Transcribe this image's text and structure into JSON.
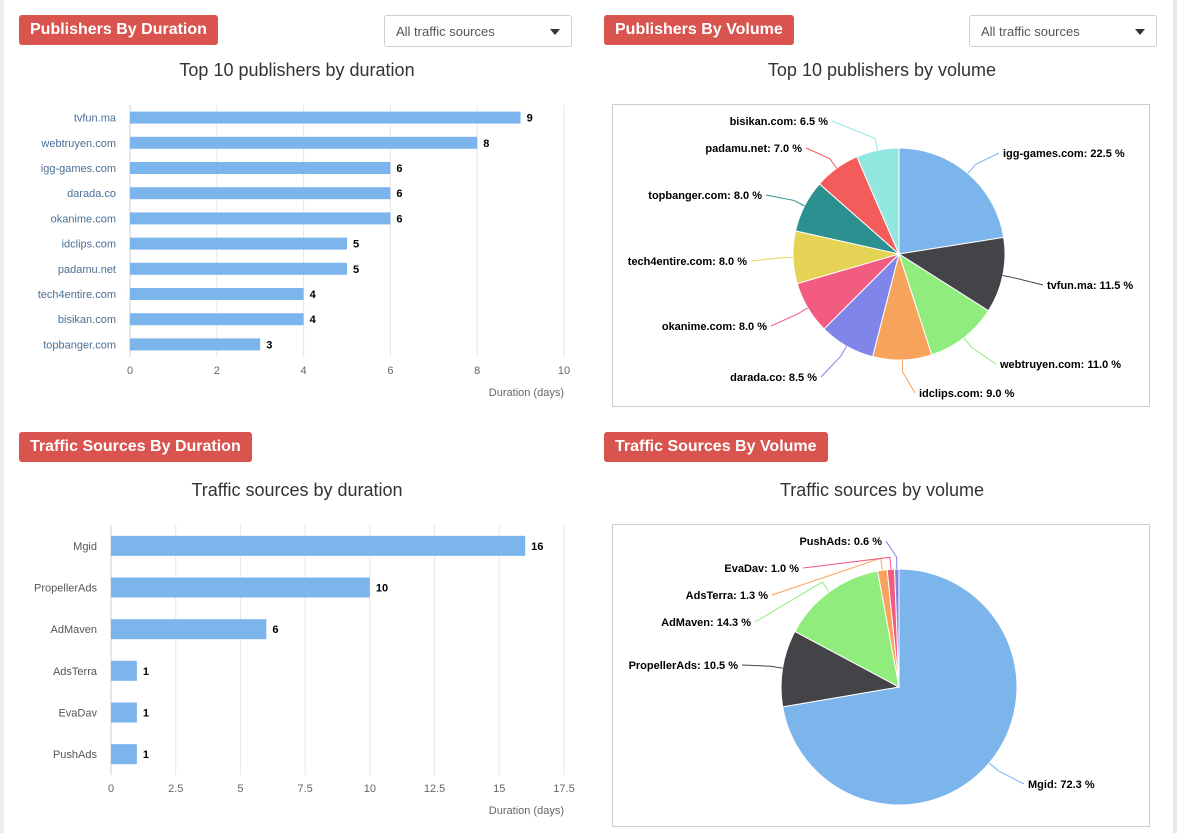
{
  "panels": {
    "pub_duration": {
      "badge": "Publishers By Duration",
      "dropdown": "All traffic sources"
    },
    "pub_volume": {
      "badge": "Publishers By Volume",
      "dropdown": "All traffic sources"
    },
    "src_duration": {
      "badge": "Traffic Sources By Duration"
    },
    "src_volume": {
      "badge": "Traffic Sources By Volume"
    }
  },
  "colors": {
    "badge": "#d9534f",
    "bar": "#7cb5ec",
    "palette": [
      "#7cb5ec",
      "#434348",
      "#90ed7d",
      "#f7a35c",
      "#8085e9",
      "#f15c80",
      "#e4d354",
      "#2b908f",
      "#f45b5b",
      "#91e8e1"
    ]
  },
  "chart_data": [
    {
      "type": "bar",
      "orientation": "horizontal",
      "title": "Top 10 publishers by duration",
      "categories": [
        "tvfun.ma",
        "webtruyen.com",
        "igg-games.com",
        "darada.co",
        "okanime.com",
        "idclips.com",
        "padamu.net",
        "tech4entire.com",
        "bisikan.com",
        "topbanger.com"
      ],
      "values": [
        9,
        8,
        6,
        6,
        6,
        5,
        5,
        4,
        4,
        3
      ],
      "xlabel": "Duration (days)",
      "xlim": [
        0,
        10
      ],
      "ticks": [
        0,
        2,
        4,
        6,
        8,
        10
      ],
      "tick_labels": [
        "0",
        "2",
        "4",
        "6",
        "8",
        "10"
      ],
      "data_labels": [
        "9",
        "8",
        "6",
        "6",
        "6",
        "5",
        "5",
        "4",
        "4",
        "3"
      ],
      "grid": true
    },
    {
      "type": "pie",
      "title": "Top 10 publishers by volume",
      "categories": [
        "igg-games.com",
        "tvfun.ma",
        "webtruyen.com",
        "idclips.com",
        "darada.co",
        "okanime.com",
        "tech4entire.com",
        "topbanger.com",
        "padamu.net",
        "bisikan.com"
      ],
      "values": [
        22.5,
        11.5,
        11.0,
        9.0,
        8.5,
        8.0,
        8.0,
        8.0,
        7.0,
        6.5
      ],
      "labels": [
        "igg-games.com: 22.5 %",
        "tvfun.ma: 11.5 %",
        "webtruyen.com: 11.0 %",
        "idclips.com: 9.0 %",
        "darada.co: 8.5 %",
        "okanime.com: 8.0 %",
        "tech4entire.com: 8.0 %",
        "topbanger.com: 8.0 %",
        "padamu.net: 7.0 %",
        "bisikan.com: 6.5 %"
      ]
    },
    {
      "type": "bar",
      "orientation": "horizontal",
      "title": "Traffic sources by duration",
      "categories": [
        "Mgid",
        "PropellerAds",
        "AdMaven",
        "AdsTerra",
        "EvaDav",
        "PushAds"
      ],
      "values": [
        16,
        10,
        6,
        1,
        1,
        1
      ],
      "xlabel": "Duration (days)",
      "xlim": [
        0,
        17.5
      ],
      "ticks": [
        0,
        2.5,
        5,
        7.5,
        10,
        12.5,
        15,
        17.5
      ],
      "tick_labels": [
        "0",
        "2.5",
        "5",
        "7.5",
        "10",
        "12.5",
        "15",
        "17.5"
      ],
      "data_labels": [
        "16",
        "10",
        "6",
        "1",
        "1",
        "1"
      ],
      "grid": true
    },
    {
      "type": "pie",
      "title": "Traffic sources by volume",
      "categories": [
        "Mgid",
        "PropellerAds",
        "AdMaven",
        "AdsTerra",
        "EvaDav",
        "PushAds"
      ],
      "values": [
        72.3,
        10.5,
        14.3,
        1.3,
        1.0,
        0.6
      ],
      "labels": [
        "Mgid: 72.3 %",
        "PropellerAds: 10.5 %",
        "AdMaven: 14.3 %",
        "AdsTerra: 1.3 %",
        "EvaDav: 1.0 %",
        "PushAds: 0.6 %"
      ]
    }
  ]
}
